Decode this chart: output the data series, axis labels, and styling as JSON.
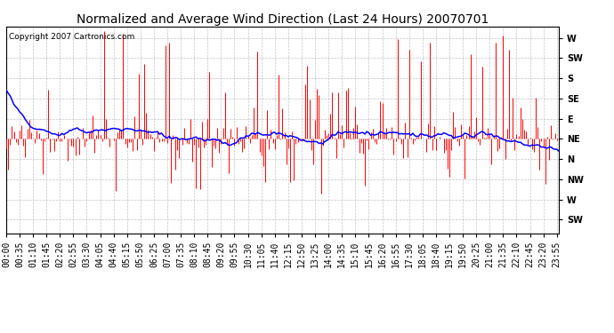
{
  "title": "Normalized and Average Wind Direction (Last 24 Hours) 20070701",
  "copyright": "Copyright 2007 Cartronics.com",
  "background_color": "#ffffff",
  "plot_bg_color": "#ffffff",
  "grid_color": "#aaaaaa",
  "red_color": "#ff0000",
  "blue_color": "#0000ff",
  "ytick_labels": [
    "SW",
    "W",
    "NW",
    "N",
    "NE",
    "E",
    "SE",
    "S",
    "SW",
    "W"
  ],
  "ytick_values": [
    0,
    45,
    90,
    135,
    180,
    225,
    270,
    315,
    360,
    405
  ],
  "ylim": [
    -30,
    430
  ],
  "title_fontsize": 10,
  "copyright_fontsize": 6.5,
  "tick_fontsize": 7,
  "minutes_per_sample": 5,
  "total_minutes": 1440
}
